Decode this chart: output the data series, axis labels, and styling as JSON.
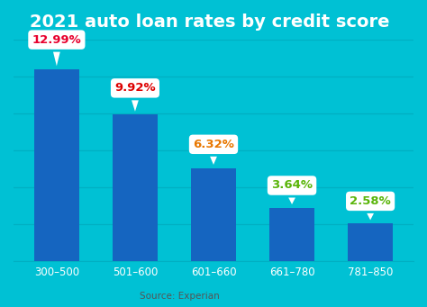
{
  "title": "2021 auto loan rates by credit score",
  "categories": [
    "300–500",
    "501–600",
    "601–660",
    "661–780",
    "781–850"
  ],
  "values": [
    12.99,
    9.92,
    6.32,
    3.64,
    2.58
  ],
  "labels": [
    "12.99%",
    "9.92%",
    "6.32%",
    "3.64%",
    "2.58%"
  ],
  "label_colors": [
    "#e8002d",
    "#dd0000",
    "#e87700",
    "#5ab50a",
    "#5ab50a"
  ],
  "bar_color": "#1565c0",
  "background_color": "#00c1d4",
  "grid_color": "#00afc2",
  "source_text": "Source: Experian",
  "title_color": "#ffffff",
  "tick_color": "#ffffff",
  "source_color": "#555555",
  "ylim": [
    0,
    15
  ],
  "bubble_offsets": [
    1.6,
    1.4,
    1.2,
    1.1,
    1.1
  ],
  "title_fontsize": 14,
  "label_fontsize": 9.5
}
